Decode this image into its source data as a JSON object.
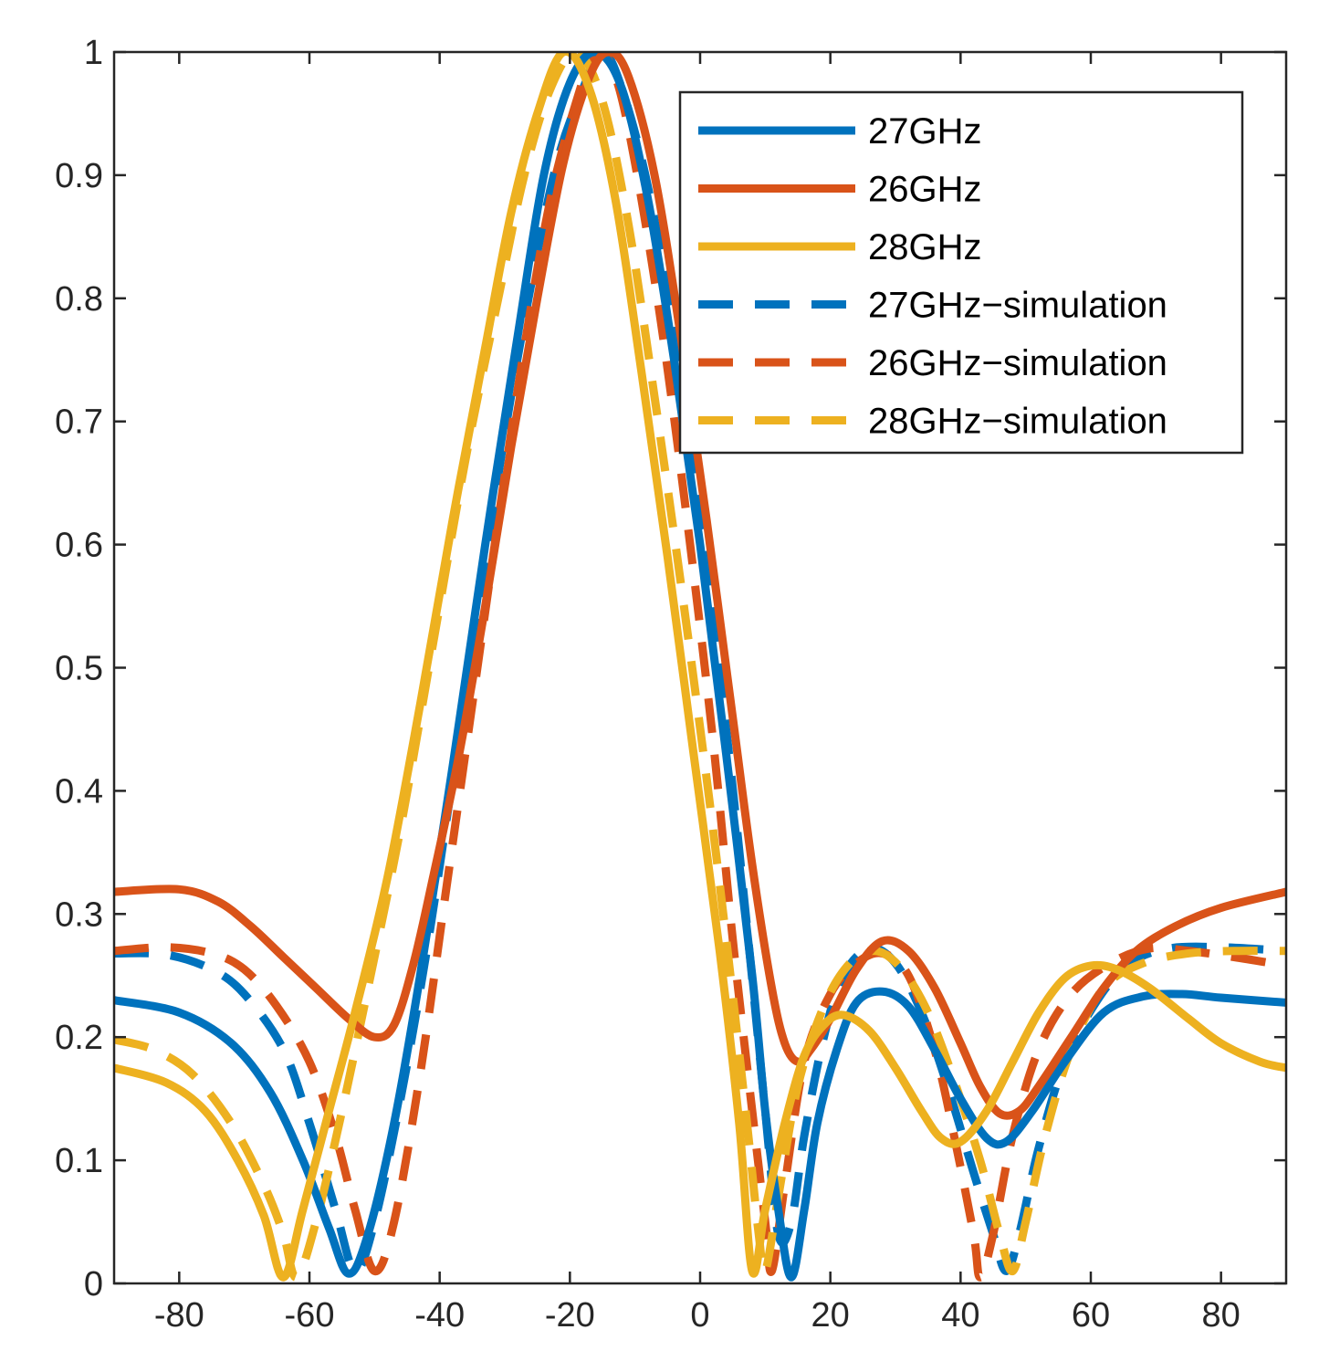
{
  "chart_data": {
    "type": "line",
    "title": "",
    "xlabel": "",
    "ylabel": "",
    "xlim": [
      -90,
      90
    ],
    "ylim": [
      0,
      1
    ],
    "xticks": [
      -80,
      -60,
      -40,
      -20,
      0,
      20,
      40,
      60,
      80
    ],
    "yticks": [
      0,
      0.1,
      0.2,
      0.3,
      0.4,
      0.5,
      0.6,
      0.7,
      0.8,
      0.9,
      1
    ],
    "xtick_labels": [
      "-80",
      "-60",
      "-40",
      "-20",
      "0",
      "20",
      "40",
      "60",
      "80"
    ],
    "ytick_labels": [
      "0",
      "0.1",
      "0.2",
      "0.3",
      "0.4",
      "0.5",
      "0.6",
      "0.7",
      "0.8",
      "0.9",
      "1"
    ],
    "grid": false,
    "legend_position": "top-right",
    "series": [
      {
        "name": "27GHz",
        "color": "#0072BD",
        "style": "solid",
        "points": [
          [
            -90,
            0.23
          ],
          [
            -80,
            0.22
          ],
          [
            -72,
            0.195
          ],
          [
            -66,
            0.155
          ],
          [
            -61,
            0.1
          ],
          [
            -57,
            0.045
          ],
          [
            -54,
            0.008
          ],
          [
            -51,
            0.04
          ],
          [
            -47,
            0.13
          ],
          [
            -43,
            0.25
          ],
          [
            -38,
            0.42
          ],
          [
            -33,
            0.6
          ],
          [
            -28,
            0.77
          ],
          [
            -24,
            0.9
          ],
          [
            -20,
            0.975
          ],
          [
            -16,
            1.0
          ],
          [
            -12,
            0.97
          ],
          [
            -8,
            0.88
          ],
          [
            -4,
            0.75
          ],
          [
            0,
            0.6
          ],
          [
            4,
            0.43
          ],
          [
            8,
            0.25
          ],
          [
            10,
            0.14
          ],
          [
            12,
            0.06
          ],
          [
            14,
            0.005
          ],
          [
            16,
            0.06
          ],
          [
            18,
            0.13
          ],
          [
            21,
            0.19
          ],
          [
            24,
            0.228
          ],
          [
            28,
            0.237
          ],
          [
            32,
            0.225
          ],
          [
            36,
            0.19
          ],
          [
            40,
            0.15
          ],
          [
            44,
            0.118
          ],
          [
            47,
            0.115
          ],
          [
            51,
            0.14
          ],
          [
            56,
            0.18
          ],
          [
            62,
            0.22
          ],
          [
            68,
            0.233
          ],
          [
            74,
            0.235
          ],
          [
            80,
            0.232
          ],
          [
            90,
            0.228
          ]
        ]
      },
      {
        "name": "26GHz",
        "color": "#D95319",
        "style": "solid",
        "points": [
          [
            -90,
            0.318
          ],
          [
            -80,
            0.32
          ],
          [
            -74,
            0.31
          ],
          [
            -69,
            0.29
          ],
          [
            -64,
            0.265
          ],
          [
            -59,
            0.24
          ],
          [
            -54,
            0.215
          ],
          [
            -50,
            0.2
          ],
          [
            -47,
            0.21
          ],
          [
            -44,
            0.26
          ],
          [
            -41,
            0.33
          ],
          [
            -37,
            0.43
          ],
          [
            -33,
            0.55
          ],
          [
            -29,
            0.68
          ],
          [
            -25,
            0.8
          ],
          [
            -21,
            0.91
          ],
          [
            -17,
            0.98
          ],
          [
            -14,
            1.0
          ],
          [
            -11,
            0.98
          ],
          [
            -7,
            0.9
          ],
          [
            -3,
            0.77
          ],
          [
            1,
            0.62
          ],
          [
            5,
            0.46
          ],
          [
            8,
            0.34
          ],
          [
            11,
            0.24
          ],
          [
            13,
            0.195
          ],
          [
            15,
            0.18
          ],
          [
            17,
            0.19
          ],
          [
            20,
            0.215
          ],
          [
            24,
            0.255
          ],
          [
            28,
            0.278
          ],
          [
            32,
            0.27
          ],
          [
            36,
            0.24
          ],
          [
            40,
            0.195
          ],
          [
            43,
            0.16
          ],
          [
            46,
            0.138
          ],
          [
            49,
            0.14
          ],
          [
            52,
            0.16
          ],
          [
            57,
            0.2
          ],
          [
            62,
            0.24
          ],
          [
            67,
            0.27
          ],
          [
            73,
            0.29
          ],
          [
            80,
            0.305
          ],
          [
            90,
            0.318
          ]
        ]
      },
      {
        "name": "28GHz",
        "color": "#EDB120",
        "style": "solid",
        "points": [
          [
            -90,
            0.175
          ],
          [
            -82,
            0.163
          ],
          [
            -76,
            0.14
          ],
          [
            -71,
            0.1
          ],
          [
            -67,
            0.055
          ],
          [
            -64,
            0.005
          ],
          [
            -61,
            0.06
          ],
          [
            -57,
            0.14
          ],
          [
            -53,
            0.22
          ],
          [
            -48,
            0.33
          ],
          [
            -43,
            0.47
          ],
          [
            -38,
            0.62
          ],
          [
            -33,
            0.76
          ],
          [
            -29,
            0.87
          ],
          [
            -25,
            0.95
          ],
          [
            -21,
            1.0
          ],
          [
            -17,
            0.97
          ],
          [
            -13,
            0.88
          ],
          [
            -9,
            0.74
          ],
          [
            -5,
            0.59
          ],
          [
            -1,
            0.43
          ],
          [
            3,
            0.27
          ],
          [
            6,
            0.13
          ],
          [
            8,
            0.01
          ],
          [
            10,
            0.06
          ],
          [
            13,
            0.13
          ],
          [
            16,
            0.185
          ],
          [
            19,
            0.21
          ],
          [
            22,
            0.218
          ],
          [
            26,
            0.205
          ],
          [
            30,
            0.175
          ],
          [
            34,
            0.14
          ],
          [
            37,
            0.118
          ],
          [
            40,
            0.115
          ],
          [
            44,
            0.14
          ],
          [
            48,
            0.18
          ],
          [
            52,
            0.22
          ],
          [
            56,
            0.248
          ],
          [
            60,
            0.258
          ],
          [
            64,
            0.255
          ],
          [
            69,
            0.24
          ],
          [
            75,
            0.215
          ],
          [
            80,
            0.195
          ],
          [
            86,
            0.18
          ],
          [
            90,
            0.175
          ]
        ]
      },
      {
        "name": "27GHz−simulation",
        "color": "#0072BD",
        "style": "dashed",
        "points": [
          [
            -90,
            0.268
          ],
          [
            -82,
            0.267
          ],
          [
            -75,
            0.255
          ],
          [
            -70,
            0.235
          ],
          [
            -64,
            0.19
          ],
          [
            -60,
            0.13
          ],
          [
            -56,
            0.06
          ],
          [
            -53,
            0.01
          ],
          [
            -50,
            0.05
          ],
          [
            -46,
            0.15
          ],
          [
            -42,
            0.27
          ],
          [
            -38,
            0.41
          ],
          [
            -34,
            0.55
          ],
          [
            -30,
            0.69
          ],
          [
            -26,
            0.81
          ],
          [
            -22,
            0.91
          ],
          [
            -18,
            0.97
          ],
          [
            -15,
            1.0
          ],
          [
            -12,
            0.97
          ],
          [
            -8,
            0.89
          ],
          [
            -4,
            0.77
          ],
          [
            0,
            0.62
          ],
          [
            4,
            0.45
          ],
          [
            7,
            0.3
          ],
          [
            10,
            0.14
          ],
          [
            12,
            0.04
          ],
          [
            14,
            0.05
          ],
          [
            16,
            0.12
          ],
          [
            19,
            0.2
          ],
          [
            22,
            0.25
          ],
          [
            26,
            0.272
          ],
          [
            30,
            0.26
          ],
          [
            34,
            0.22
          ],
          [
            38,
            0.16
          ],
          [
            42,
            0.09
          ],
          [
            45,
            0.04
          ],
          [
            47,
            0.01
          ],
          [
            49,
            0.04
          ],
          [
            52,
            0.11
          ],
          [
            56,
            0.18
          ],
          [
            61,
            0.23
          ],
          [
            66,
            0.26
          ],
          [
            72,
            0.272
          ],
          [
            80,
            0.273
          ],
          [
            90,
            0.27
          ]
        ]
      },
      {
        "name": "26GHz−simulation",
        "color": "#D95319",
        "style": "dashed",
        "points": [
          [
            -90,
            0.27
          ],
          [
            -82,
            0.273
          ],
          [
            -75,
            0.268
          ],
          [
            -70,
            0.255
          ],
          [
            -65,
            0.225
          ],
          [
            -60,
            0.18
          ],
          [
            -56,
            0.12
          ],
          [
            -53,
            0.06
          ],
          [
            -50,
            0.01
          ],
          [
            -47,
            0.05
          ],
          [
            -43,
            0.17
          ],
          [
            -39,
            0.32
          ],
          [
            -35,
            0.47
          ],
          [
            -31,
            0.62
          ],
          [
            -27,
            0.76
          ],
          [
            -23,
            0.88
          ],
          [
            -19,
            0.96
          ],
          [
            -16,
            1.0
          ],
          [
            -13,
            0.98
          ],
          [
            -10,
            0.91
          ],
          [
            -6,
            0.78
          ],
          [
            -2,
            0.62
          ],
          [
            2,
            0.44
          ],
          [
            5,
            0.28
          ],
          [
            8,
            0.14
          ],
          [
            10,
            0.05
          ],
          [
            11,
            0.01
          ],
          [
            13,
            0.08
          ],
          [
            16,
            0.18
          ],
          [
            20,
            0.235
          ],
          [
            24,
            0.26
          ],
          [
            28,
            0.268
          ],
          [
            32,
            0.25
          ],
          [
            36,
            0.19
          ],
          [
            39,
            0.12
          ],
          [
            42,
            0.04
          ],
          [
            43,
            0.005
          ],
          [
            45,
            0.04
          ],
          [
            48,
            0.12
          ],
          [
            52,
            0.19
          ],
          [
            57,
            0.235
          ],
          [
            63,
            0.26
          ],
          [
            69,
            0.272
          ],
          [
            75,
            0.27
          ],
          [
            82,
            0.265
          ],
          [
            90,
            0.258
          ]
        ]
      },
      {
        "name": "28GHz−simulation",
        "color": "#EDB120",
        "style": "dashed",
        "points": [
          [
            -90,
            0.198
          ],
          [
            -84,
            0.19
          ],
          [
            -78,
            0.17
          ],
          [
            -72,
            0.13
          ],
          [
            -67,
            0.08
          ],
          [
            -64,
            0.04
          ],
          [
            -62,
            0.005
          ],
          [
            -59,
            0.05
          ],
          [
            -55,
            0.14
          ],
          [
            -51,
            0.24
          ],
          [
            -46,
            0.37
          ],
          [
            -41,
            0.52
          ],
          [
            -36,
            0.67
          ],
          [
            -31,
            0.8
          ],
          [
            -27,
            0.9
          ],
          [
            -23,
            0.97
          ],
          [
            -19,
            1.0
          ],
          [
            -15,
            0.96
          ],
          [
            -11,
            0.86
          ],
          [
            -7,
            0.72
          ],
          [
            -3,
            0.57
          ],
          [
            1,
            0.41
          ],
          [
            4,
            0.28
          ],
          [
            7,
            0.14
          ],
          [
            9,
            0.04
          ],
          [
            10,
            0.01
          ],
          [
            12,
            0.07
          ],
          [
            15,
            0.16
          ],
          [
            19,
            0.225
          ],
          [
            23,
            0.26
          ],
          [
            27,
            0.27
          ],
          [
            31,
            0.255
          ],
          [
            35,
            0.22
          ],
          [
            39,
            0.165
          ],
          [
            43,
            0.1
          ],
          [
            46,
            0.04
          ],
          [
            48,
            0.01
          ],
          [
            50,
            0.05
          ],
          [
            53,
            0.12
          ],
          [
            57,
            0.19
          ],
          [
            62,
            0.24
          ],
          [
            68,
            0.26
          ],
          [
            75,
            0.268
          ],
          [
            82,
            0.27
          ],
          [
            90,
            0.27
          ]
        ]
      }
    ]
  }
}
